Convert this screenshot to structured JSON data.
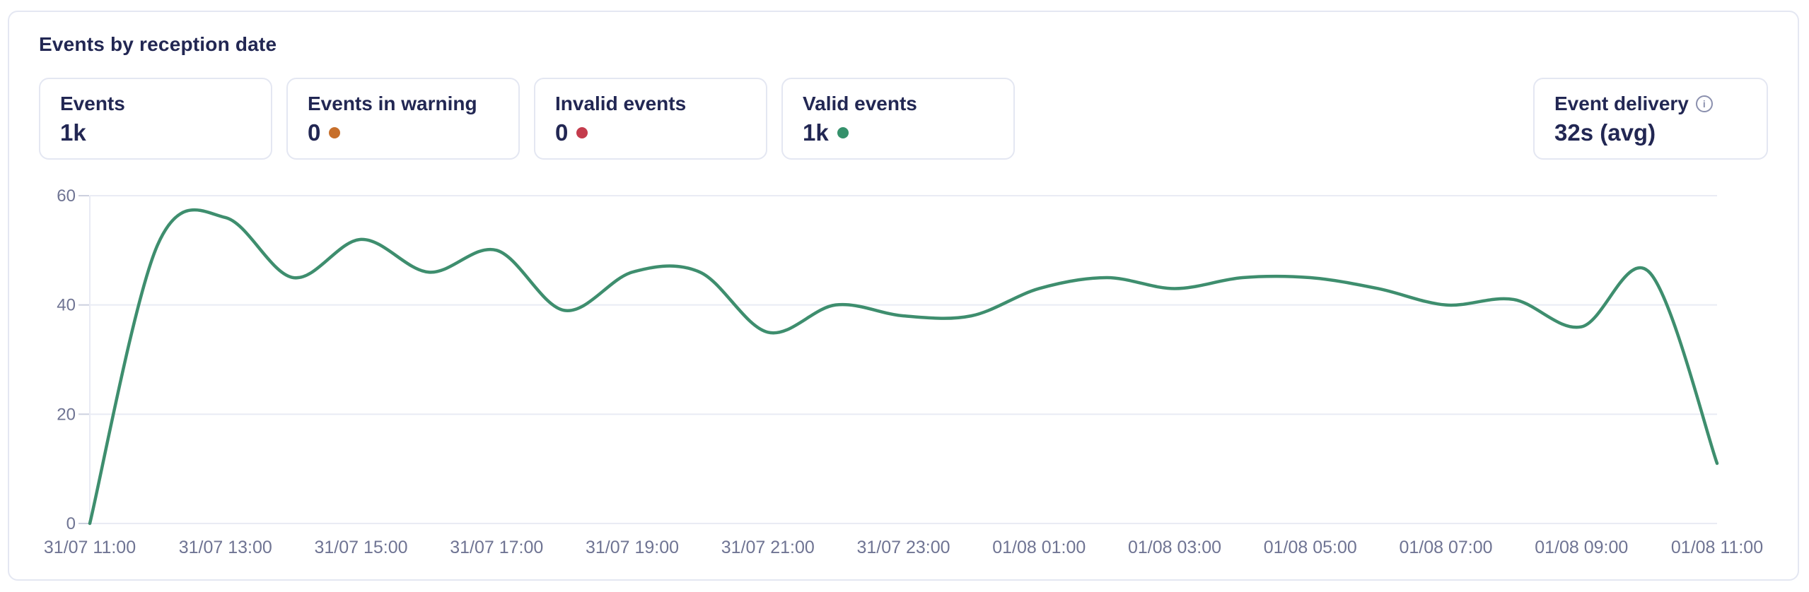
{
  "panel": {
    "title": "Events by reception date"
  },
  "stats": [
    {
      "label": "Events",
      "value": "1k"
    },
    {
      "label": "Events in warning",
      "value": "0",
      "dot_color": "#c76f2b",
      "dot_name": "warning-dot"
    },
    {
      "label": "Invalid events",
      "value": "0",
      "dot_color": "#c43b4c",
      "dot_name": "invalid-dot"
    },
    {
      "label": "Valid events",
      "value": "1k",
      "dot_color": "#35916b",
      "dot_name": "valid-dot"
    }
  ],
  "delivery": {
    "label": "Event delivery",
    "value": "32s (avg)"
  },
  "icons": {
    "info_glyph": "i"
  },
  "chart_data": {
    "type": "line",
    "title": "Events by reception date",
    "xlabel": "",
    "ylabel": "",
    "ylim": [
      0,
      60
    ],
    "yticks": [
      0,
      20,
      40,
      60
    ],
    "grid": true,
    "legend": "none",
    "line_color": "#3e8e6e",
    "grid_color": "#e9ebf4",
    "tick_color": "#ccd0df",
    "axis_text_color": "#6f7493",
    "categories": [
      "31/07 11:00",
      "31/07 12:00",
      "31/07 13:00",
      "31/07 14:00",
      "31/07 15:00",
      "31/07 16:00",
      "31/07 17:00",
      "31/07 18:00",
      "31/07 19:00",
      "31/07 20:00",
      "31/07 21:00",
      "31/07 22:00",
      "31/07 23:00",
      "01/08 00:00",
      "01/08 01:00",
      "01/08 02:00",
      "01/08 03:00",
      "01/08 04:00",
      "01/08 05:00",
      "01/08 06:00",
      "01/08 07:00",
      "01/08 08:00",
      "01/08 09:00",
      "01/08 10:00",
      "01/08 11:00"
    ],
    "values": [
      0,
      51,
      56,
      45,
      52,
      46,
      50,
      39,
      46,
      46,
      35,
      40,
      38,
      38,
      43,
      45,
      43,
      45,
      45,
      43,
      40,
      41,
      36,
      46,
      11
    ],
    "x_tick_labels": [
      "31/07 11:00",
      "31/07 13:00",
      "31/07 15:00",
      "31/07 17:00",
      "31/07 19:00",
      "31/07 21:00",
      "31/07 23:00",
      "01/08 01:00",
      "01/08 03:00",
      "01/08 05:00",
      "01/08 07:00",
      "01/08 09:00",
      "01/08 11:00"
    ]
  }
}
